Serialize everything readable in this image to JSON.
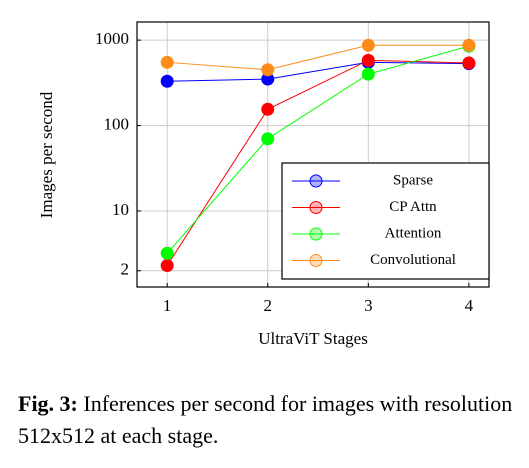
{
  "chart_data": {
    "type": "line",
    "x_label": "UltraViT Stages",
    "y_label": "Images per second",
    "x": [
      1,
      2,
      3,
      4
    ],
    "xlim": [
      0.7,
      4.2
    ],
    "xticks": [
      1,
      2,
      3,
      4
    ],
    "ylim": [
      1.29,
      1630
    ],
    "yticks": [
      2,
      10,
      100,
      1000
    ],
    "y_scale": "log",
    "legend_position": "lower-right",
    "series": [
      {
        "name": "Sparse",
        "color": "#0000ff",
        "values": [
          330,
          350,
          550,
          530
        ]
      },
      {
        "name": "CP Attn",
        "color": "#ff0000",
        "values": [
          2.3,
          155,
          580,
          540
        ]
      },
      {
        "name": "Attention",
        "color": "#00ff00",
        "values": [
          3.2,
          70,
          400,
          850
        ]
      },
      {
        "name": "Convolutional",
        "color": "#ff8c1a",
        "values": [
          550,
          450,
          870,
          870
        ]
      }
    ]
  },
  "caption": {
    "label": "Fig. 3:",
    "text": "Inferences per second for images with resolution 512x512 at each stage."
  }
}
